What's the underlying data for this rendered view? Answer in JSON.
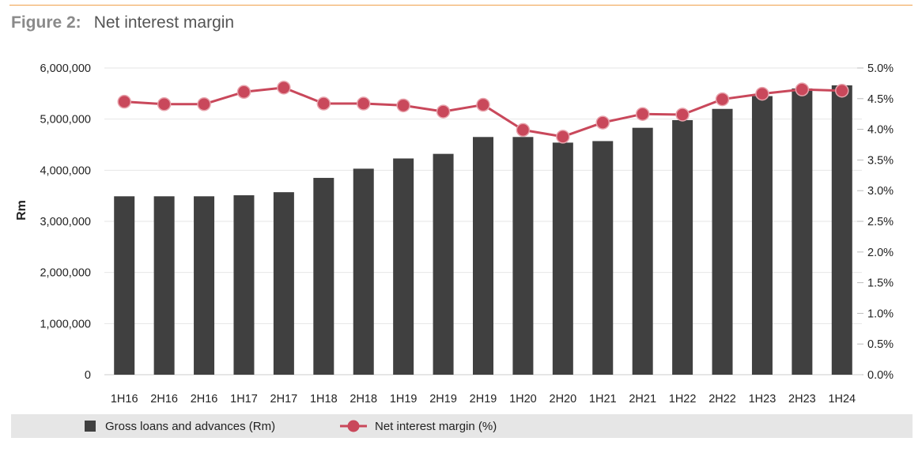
{
  "figure": {
    "number": "Figure 2:",
    "title": "Net interest margin"
  },
  "colors": {
    "bar": "#404040",
    "line": "#c9485b",
    "accent": "#f0a04b",
    "legend_bg": "#e6e6e6",
    "grid": "#e6e6e6"
  },
  "chart_data": {
    "type": "bar",
    "title": "Net interest margin",
    "categories": [
      "1H16",
      "2H16",
      "2H16",
      "1H17",
      "2H17",
      "1H18",
      "2H18",
      "1H19",
      "2H19",
      "2H19",
      "1H20",
      "2H20",
      "1H21",
      "2H21",
      "1H22",
      "2H22",
      "1H23",
      "2H23",
      "1H24"
    ],
    "series": [
      {
        "name": "Gross loans and advances (Rm)",
        "type": "bar",
        "axis": "left",
        "values": [
          3490000,
          3490000,
          3490000,
          3510000,
          3570000,
          3850000,
          4030000,
          4230000,
          4320000,
          4650000,
          4650000,
          4540000,
          4570000,
          4830000,
          4980000,
          5200000,
          5450000,
          5600000,
          5660000
        ]
      },
      {
        "name": "Net interest margin (%)",
        "type": "line",
        "axis": "right",
        "values": [
          4.45,
          4.41,
          4.41,
          4.61,
          4.68,
          4.42,
          4.42,
          4.39,
          4.29,
          4.4,
          3.99,
          3.88,
          4.11,
          4.25,
          4.24,
          4.49,
          4.58,
          4.65,
          4.63
        ]
      }
    ],
    "ylabel": "Rm",
    "y_left": {
      "min": 0,
      "max": 6000000,
      "ticks": [
        "0",
        "1,000,000",
        "2,000,000",
        "3,000,000",
        "4,000,000",
        "5,000,000",
        "6,000,000"
      ]
    },
    "y_right": {
      "min": 0,
      "max": 5,
      "ticks": [
        "0.0%",
        "0.5%",
        "1.0%",
        "1.5%",
        "2.0%",
        "2.5%",
        "3.0%",
        "3.5%",
        "4.0%",
        "4.5%",
        "5.0%"
      ]
    },
    "grid": true,
    "legend_position": "bottom"
  }
}
